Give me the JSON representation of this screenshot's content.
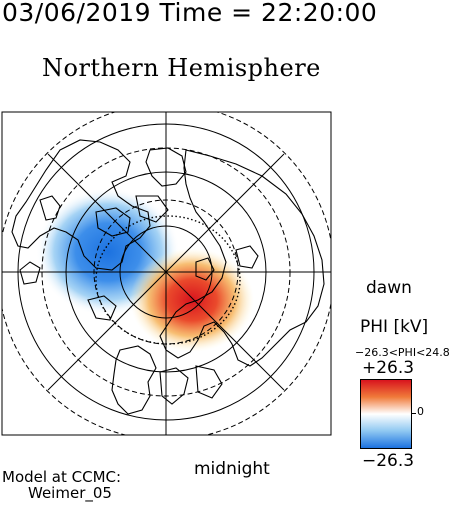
{
  "header": {
    "date_time": "03/06/2019 Time = 22:20:00"
  },
  "plot": {
    "title": "Northern Hemisphere"
  },
  "directions": {
    "dawn": "dawn",
    "midnight": "midnight"
  },
  "colorbar": {
    "variable": "PHI [kV]",
    "range_text": "−26.3<PHI<24.8",
    "max_label": "+26.3",
    "min_label": "−26.3",
    "zero_label": "0",
    "colors": {
      "max": "#d8141e",
      "mid": "#ffffff",
      "min": "#1c72e0"
    }
  },
  "credit": {
    "line1": "Model at CCMC:",
    "line2": "Weimer_05"
  }
}
